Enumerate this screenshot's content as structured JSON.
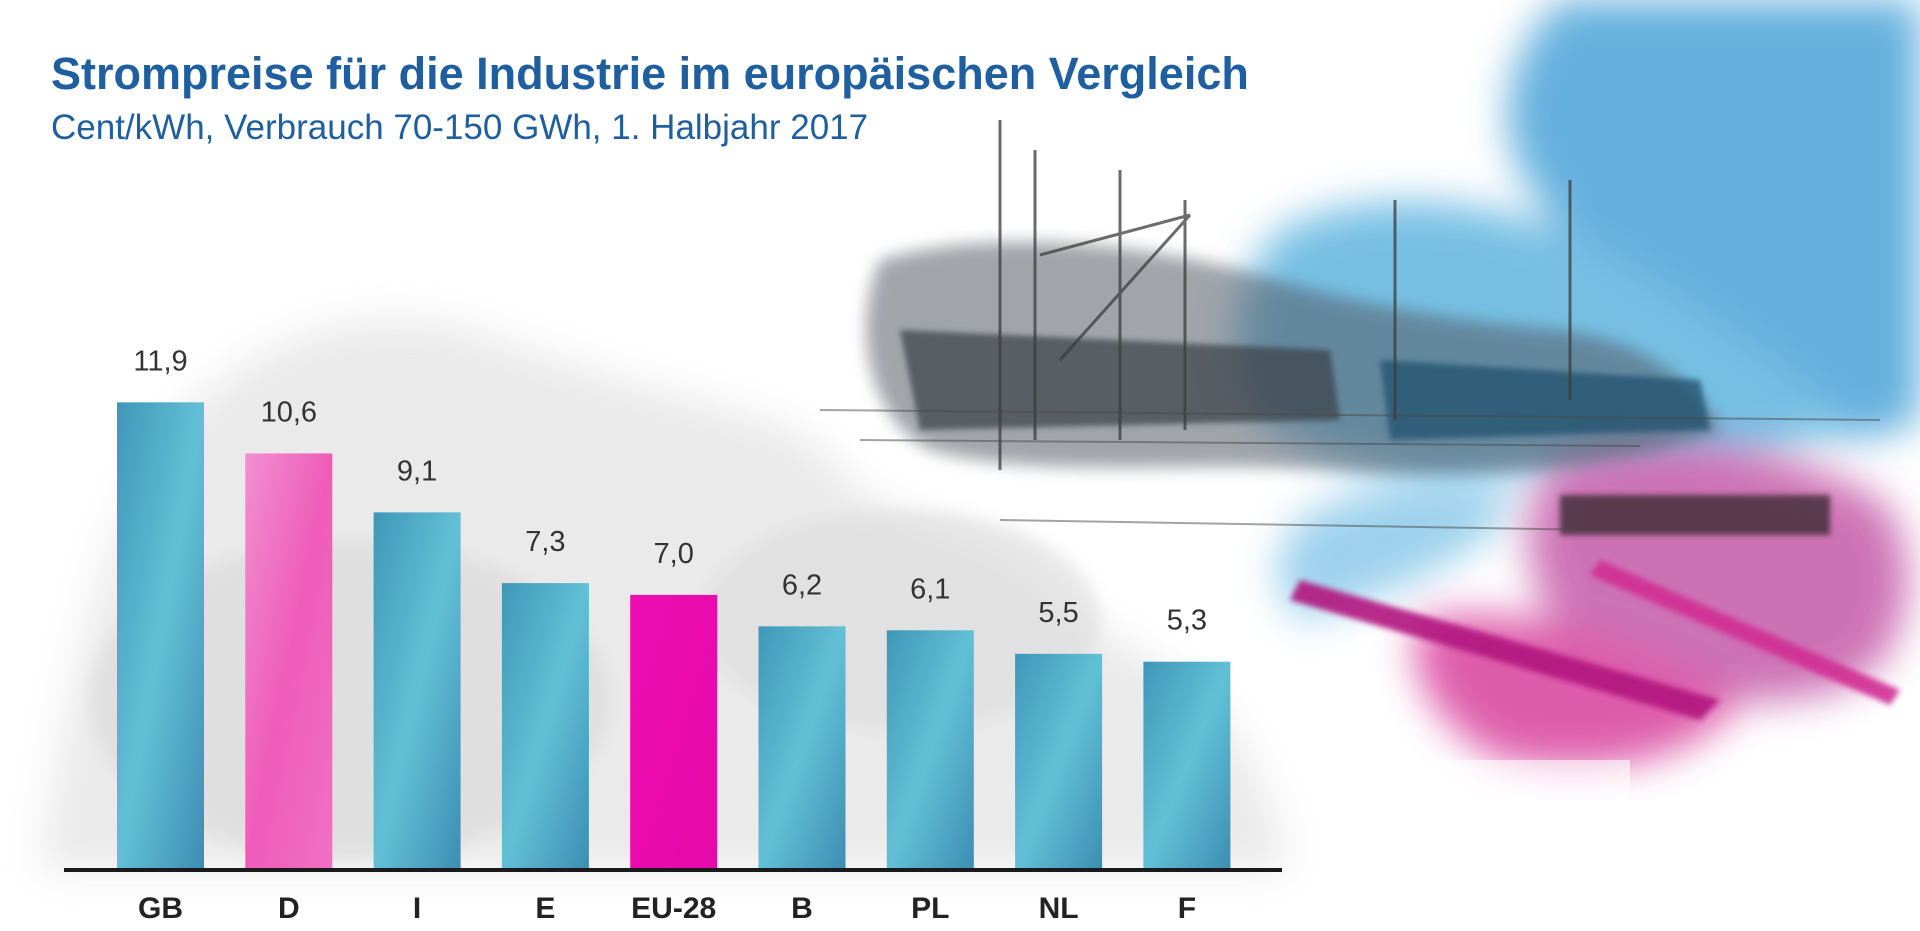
{
  "colors": {
    "title": "#1f5fa0",
    "bar_default": "#4ea8c4",
    "bar_highlight": "#f064c0",
    "bar_eu": "#ec0fb3",
    "axis": "#1a1a1a"
  },
  "chart_data": {
    "type": "bar",
    "title": "Strompreise für die Industrie im europäischen Vergleich",
    "subtitle": "Cent/kWh, Verbrauch 70-150 GWh, 1. Halbjahr 2017",
    "categories": [
      "GB",
      "D",
      "I",
      "E",
      "EU-28",
      "B",
      "PL",
      "NL",
      "F"
    ],
    "values": [
      11.9,
      10.6,
      9.1,
      7.3,
      7.0,
      6.2,
      6.1,
      5.5,
      5.3
    ],
    "value_labels": [
      "11,9",
      "10,6",
      "9,1",
      "7,3",
      "7,0",
      "6,2",
      "6,1",
      "5,5",
      "5,3"
    ],
    "highlight": {
      "D": "bar_highlight",
      "EU-28": "bar_eu"
    },
    "ylim": [
      0,
      12
    ],
    "grid": false,
    "legend": "none"
  }
}
